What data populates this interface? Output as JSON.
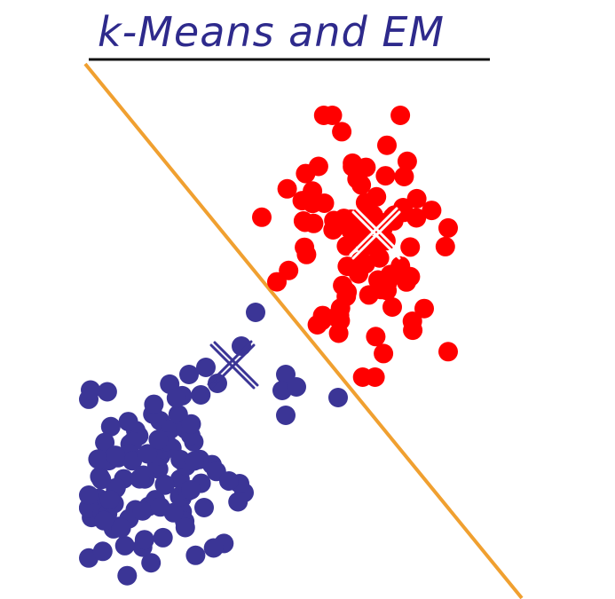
{
  "title": "k-Means and EM",
  "colors": {
    "title": "#2e2a8c",
    "underline": "#111111",
    "boundary": "#f0a030",
    "cluster_red": "#ff0000",
    "cluster_blue": "#3b3596",
    "center_mark_red": "#ffffff",
    "center_mark_blue": "#3b3596"
  },
  "clusters": [
    {
      "name": "red",
      "color": "#ff0000",
      "center_marker": "x-mark",
      "count_shown": 95
    },
    {
      "name": "blue",
      "color": "#3b3596",
      "center_marker": "x-mark",
      "count_shown": 110
    }
  ]
}
